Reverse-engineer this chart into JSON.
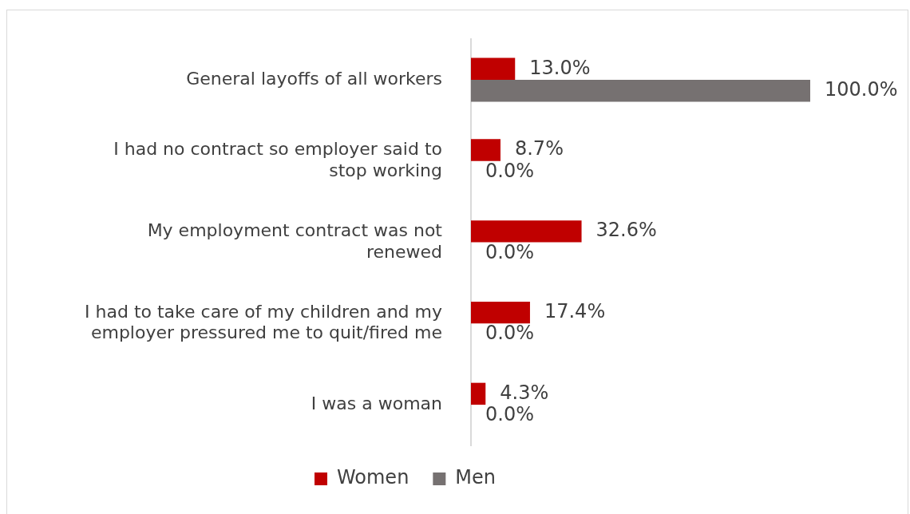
{
  "chart_data": {
    "type": "bar",
    "orientation": "horizontal",
    "categories": [
      "General layoffs of all workers",
      "I had no contract so employer said to stop working",
      "My employment contract was not renewed",
      "I had to take care of my children and my employer pressured me to quit/fired me",
      "I was a woman"
    ],
    "series": [
      {
        "name": "Women",
        "color": "#c00000",
        "values": [
          13.0,
          8.7,
          32.6,
          17.4,
          4.3
        ],
        "value_labels": [
          "13.0%",
          "8.7%",
          "32.6%",
          "17.4%",
          "4.3%"
        ]
      },
      {
        "name": "Men",
        "color": "#767171",
        "values": [
          100.0,
          0.0,
          0.0,
          0.0,
          0.0
        ],
        "value_labels": [
          "100.0%",
          "0.0%",
          "0.0%",
          "0.0%",
          "0.0%"
        ]
      }
    ],
    "legend": "bottom"
  }
}
